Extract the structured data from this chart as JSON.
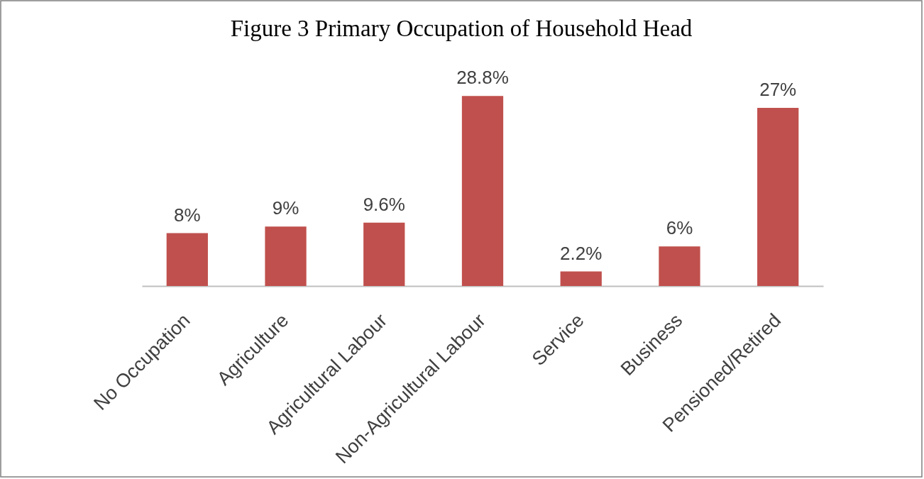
{
  "chart_data": {
    "type": "bar",
    "title": "Figure 3  Primary Occupation of Household Head",
    "categories": [
      "No Occupation",
      "Agriculture",
      "Agricultural Labour",
      "Non-Agricultural Labour",
      "Service",
      "Business",
      "Pensioned/Retired"
    ],
    "values": [
      8,
      9,
      9.6,
      28.8,
      2.2,
      6,
      27
    ],
    "color": "#c0504d",
    "value_labels": [
      "8%",
      "9%",
      "9.6%",
      "28.8%",
      "2.2%",
      "6%",
      "27%"
    ],
    "tick_labels": "x"
  }
}
